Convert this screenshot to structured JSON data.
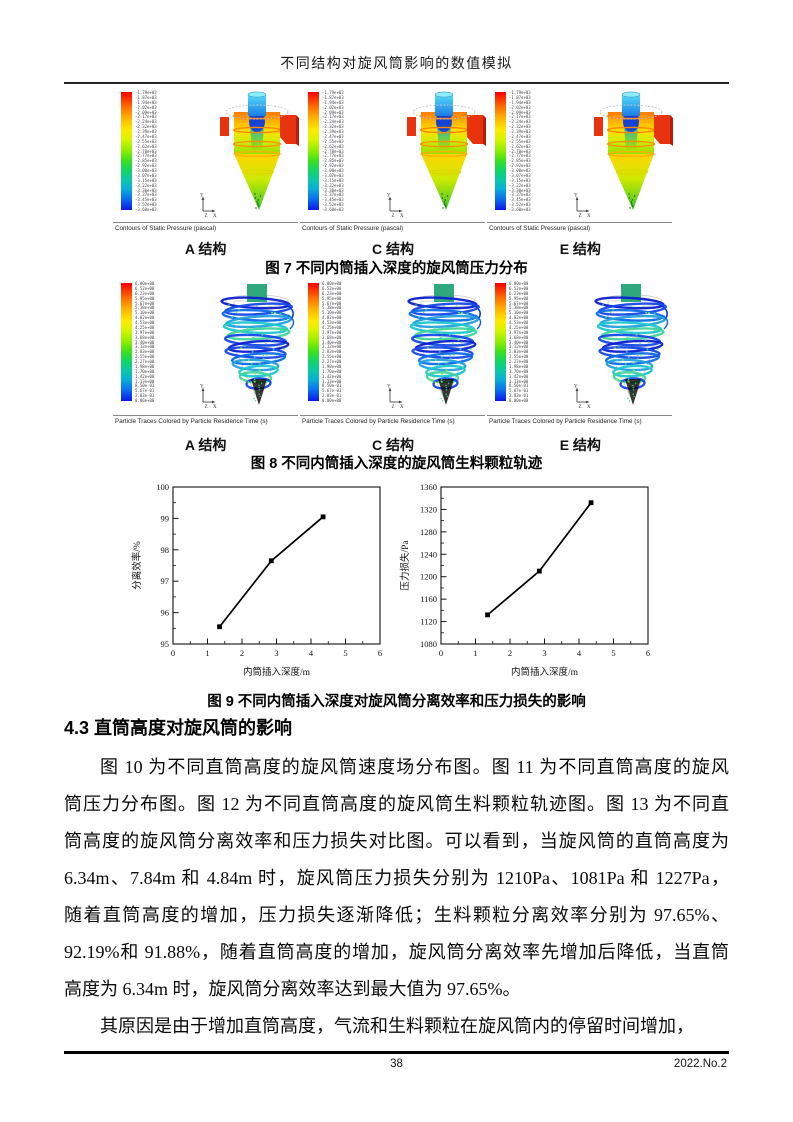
{
  "header": {
    "title": "不同结构对旋风筒影响的数值模拟"
  },
  "figure7": {
    "panel_caption": "Contours of Static Pressure (pascal)",
    "panels": [
      {
        "label": "A 结构"
      },
      {
        "label": "C 结构"
      },
      {
        "label": "E 结构"
      }
    ],
    "caption": "图 7 不同内筒插入深度的旋风筒压力分布",
    "colorbar_labels": [
      "-1.79e+03",
      "-1.87e+03",
      "-1.94e+03",
      "-2.02e+03",
      "-2.09e+03",
      "-2.17e+03",
      "-2.24e+03",
      "-2.32e+03",
      "-2.39e+03",
      "-2.47e+03",
      "-2.55e+03",
      "-2.62e+03",
      "-2.70e+03",
      "-2.77e+03",
      "-2.85e+03",
      "-2.92e+03",
      "-3.00e+03",
      "-3.07e+03",
      "-3.15e+03",
      "-3.22e+03",
      "-3.30e+03",
      "-3.37e+03",
      "-3.45e+03",
      "-3.52e+03",
      "-3.60e+03"
    ]
  },
  "figure8": {
    "panel_caption": "Particle Traces Colored by Particle Residence Time (s)",
    "panels": [
      {
        "label": "A 结构"
      },
      {
        "label": "C 结构"
      },
      {
        "label": "E 结构"
      }
    ],
    "caption": "图 8 不同内筒插入深度的旋风筒生料颗粒轨迹",
    "colorbar_labels": [
      "6.80e+00",
      "6.52e+00",
      "6.23e+00",
      "5.95e+00",
      "5.67e+00",
      "5.38e+00",
      "5.10e+00",
      "4.82e+00",
      "4.53e+00",
      "4.25e+00",
      "3.97e+00",
      "3.68e+00",
      "3.40e+00",
      "3.12e+00",
      "2.83e+00",
      "2.55e+00",
      "2.27e+00",
      "1.98e+00",
      "1.70e+00",
      "1.42e+00",
      "1.13e+00",
      "8.50e-01",
      "5.67e-01",
      "2.83e-01",
      "0.00e+00"
    ]
  },
  "figure9": {
    "caption": "图 9 不同内筒插入深度对旋风筒分离效率和压力损失的影响"
  },
  "chart_data": [
    {
      "type": "line",
      "series_name": "分离效率",
      "x": [
        1.35,
        2.85,
        4.35
      ],
      "y": [
        95.55,
        97.65,
        99.05
      ],
      "xlabel": "内筒插入深度/m",
      "ylabel": "分离效率/%",
      "xlim": [
        0,
        6
      ],
      "ylim": [
        95,
        100
      ],
      "xticks": [
        0,
        1,
        2,
        3,
        4,
        5,
        6
      ],
      "yticks": [
        95,
        96,
        97,
        98,
        99,
        100
      ],
      "x_minor_step": 0.5,
      "y_minor_step": 0.5,
      "marker": "square",
      "line_color": "#000000",
      "grid": false,
      "legend": false
    },
    {
      "type": "line",
      "series_name": "压力损失",
      "x": [
        1.35,
        2.85,
        4.35
      ],
      "y": [
        1132,
        1210,
        1332
      ],
      "xlabel": "内筒插入深度/m",
      "ylabel": "压力损失/Pa",
      "xlim": [
        0,
        6
      ],
      "ylim": [
        1080,
        1360
      ],
      "xticks": [
        0,
        1,
        2,
        3,
        4,
        5,
        6
      ],
      "yticks": [
        1080,
        1120,
        1160,
        1200,
        1240,
        1280,
        1320,
        1360
      ],
      "x_minor_step": 0.5,
      "y_minor_step": 20,
      "marker": "square",
      "line_color": "#000000",
      "grid": false,
      "legend": false
    }
  ],
  "section": {
    "heading": "4.3 直筒高度对旋风筒的影响"
  },
  "body": {
    "p1_lines": [
      "图 10 为不同直筒高度的旋风筒速度场分布图。图 11 为不同直筒高度的旋风",
      "筒压力分布图。图 12 为不同直筒高度的旋风筒生料颗粒轨迹图。图 13 为不同直",
      "筒高度的旋风筒分离效率和压力损失对比图。可以看到，当旋风筒的直筒高度为",
      "6.34m、7.84m 和 4.84m 时，旋风筒压力损失分别为 1210Pa、1081Pa 和 1227Pa，",
      "随着直筒高度的增加，压力损失逐渐降低；生料颗粒分离效率分别为 97.65%、",
      "92.19%和 91.88%，随着直筒高度的增加，旋风筒分离效率先增加后降低，当直筒",
      "高度为 6.34m 时，旋风筒分离效率达到最大值为 97.65%。"
    ],
    "p2_lines": [
      "其原因是由于增加直筒高度，气流和生料颗粒在旋风筒内的停留时间增加，"
    ]
  },
  "footer": {
    "page_number": "38",
    "issue": "2022.No.2"
  },
  "cfd": {
    "triad": {
      "up": "Y",
      "right": "X",
      "out": "Z"
    }
  }
}
